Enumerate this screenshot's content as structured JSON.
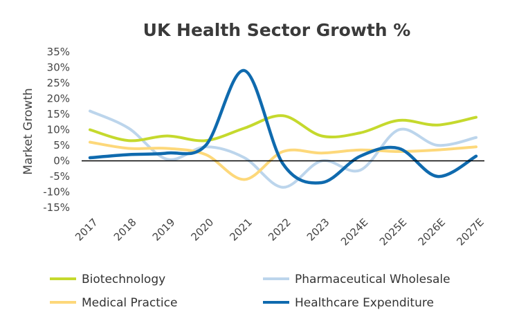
{
  "chart_data": {
    "type": "line",
    "title": "UK Health Sector Growth %",
    "xlabel": "",
    "ylabel": "Market Growth",
    "categories": [
      "2017",
      "2018",
      "2019",
      "2020",
      "2021",
      "2022",
      "2023",
      "2024E",
      "2025E",
      "2026E",
      "2027E"
    ],
    "ylim": [
      -15,
      35
    ],
    "yticks": [
      "35%",
      "30%",
      "25%",
      "20%",
      "15%",
      "10%",
      "5%",
      "0%",
      "-5%",
      "-10%",
      "-15%"
    ],
    "grid": false,
    "legend_position": "bottom",
    "series": [
      {
        "name": "Biotechnology",
        "color": "#c5d92d",
        "values": [
          10,
          6.5,
          8,
          6.5,
          10.5,
          14.5,
          8,
          9,
          13,
          11.5,
          14
        ]
      },
      {
        "name": "Pharmaceutical Wholesale",
        "color": "#bcd5ec",
        "values": [
          16,
          10.5,
          0.5,
          4.5,
          1,
          -8.5,
          0,
          -3,
          10,
          5,
          7.5
        ]
      },
      {
        "name": "Medical Practice",
        "color": "#fdd87a",
        "values": [
          6,
          4,
          4,
          2,
          -6,
          3,
          2.5,
          3.5,
          3,
          3.5,
          4.5
        ]
      },
      {
        "name": "Healthcare Expenditure",
        "color": "#0f6aae",
        "values": [
          1,
          2,
          2.5,
          5,
          29,
          -1,
          -7,
          1.5,
          4,
          -5,
          1.5
        ]
      }
    ]
  }
}
